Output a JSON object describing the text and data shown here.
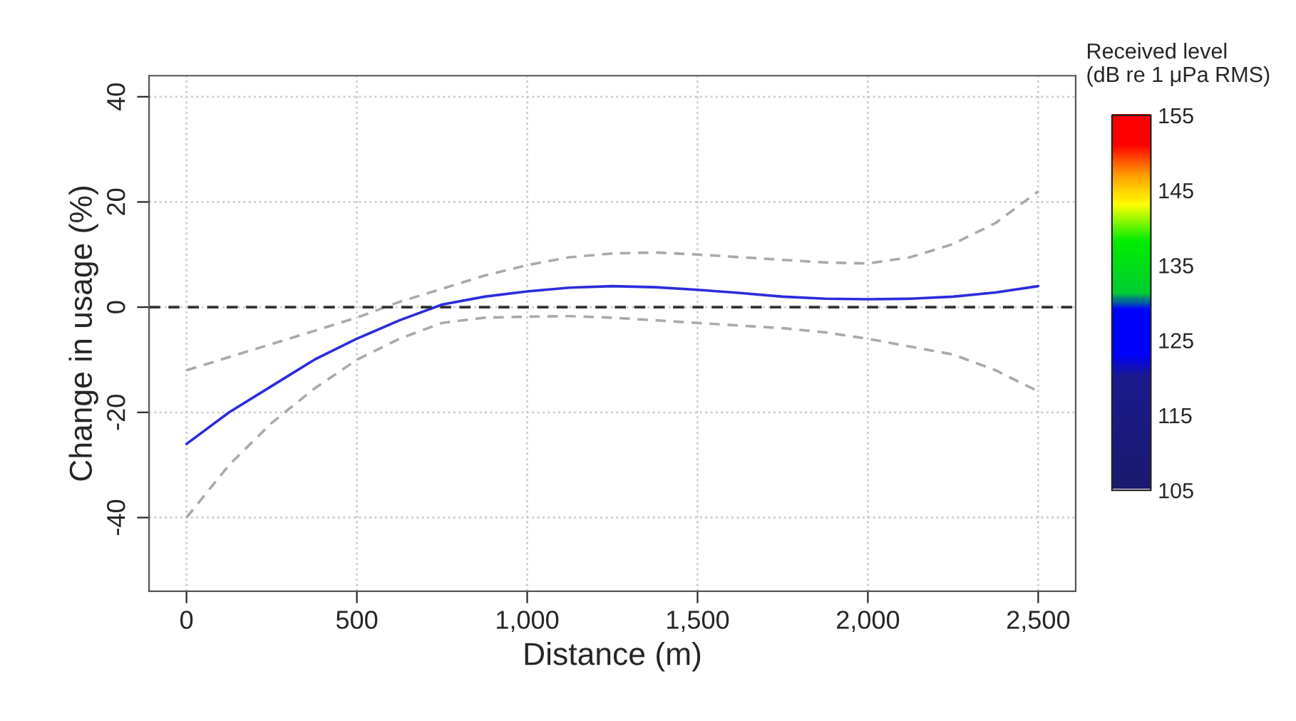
{
  "chart_data": {
    "type": "line",
    "xlabel": "Distance (m)",
    "ylabel": "Change in usage (%)",
    "clabel": "Received level\n(dB re 1 μPa RMS)",
    "clim": [
      105,
      155
    ],
    "cticks": [
      105,
      115,
      125,
      135,
      145,
      155
    ],
    "x": [
      0,
      125,
      250,
      375,
      500,
      625,
      750,
      875,
      1000,
      1125,
      1250,
      1375,
      1500,
      1625,
      1750,
      1875,
      2000,
      2125,
      2250,
      2375,
      2500
    ],
    "series": [
      {
        "color": "#2b2bdd",
        "line_style": "solid",
        "values": [
          -26,
          -20,
          -15,
          -10,
          -6,
          -2.5,
          0.5,
          2,
          3,
          3.7,
          4,
          3.8,
          3.3,
          2.7,
          2,
          1.6,
          1.5,
          1.6,
          2,
          2.8,
          4
        ]
      },
      {
        "color": "#aaaaaa",
        "line_style": "dashed",
        "values": [
          -40,
          -30,
          -22,
          -15.5,
          -10,
          -6,
          -3,
          -2,
          -1.8,
          -1.7,
          -2,
          -2.5,
          -3,
          -3.5,
          -4,
          -4.8,
          -6,
          -7.5,
          -9,
          -12,
          -16
        ]
      },
      {
        "color": "#aaaaaa",
        "line_style": "dashed",
        "values": [
          -12,
          -9.5,
          -7,
          -4.5,
          -2,
          1,
          3.5,
          6,
          8,
          9.5,
          10.2,
          10.4,
          10,
          9.5,
          9,
          8.5,
          8.3,
          9.5,
          12,
          16,
          22
        ]
      }
    ],
    "xlim": [
      -110,
      2610
    ],
    "ylim": [
      -54,
      44
    ],
    "xticks": [
      0,
      500,
      {
        "value": 1000,
        "label": "1,000"
      },
      {
        "value": 1500,
        "label": "1,500"
      },
      {
        "value": 2000,
        "label": "2,000"
      },
      {
        "value": 2500,
        "label": "2,500"
      }
    ],
    "yticks": [
      -40,
      -20,
      0,
      20,
      40
    ],
    "ref_lines": [
      {
        "axis": "y",
        "value": 0,
        "color": "#333333",
        "line_style": "dashed"
      }
    ],
    "grid": true
  }
}
